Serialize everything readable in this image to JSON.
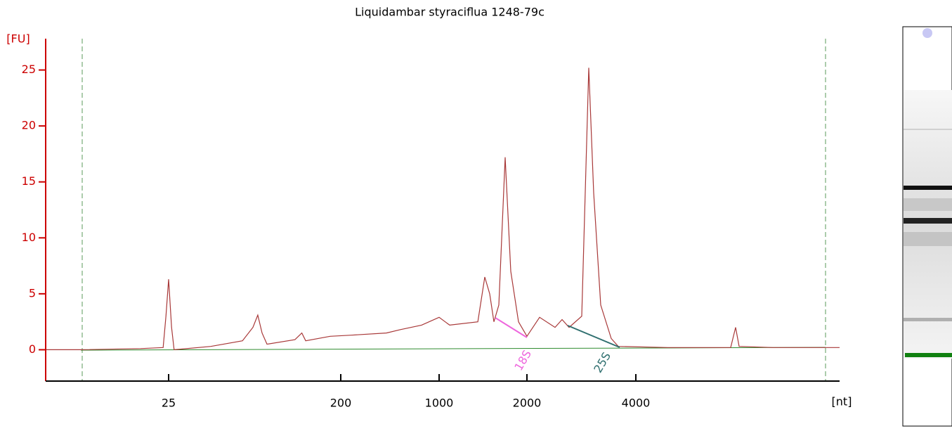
{
  "chart_data": {
    "type": "line",
    "title": "Liquidambar styraciflua 1248-79c",
    "ylabel": "[FU]",
    "xlabel": "[nt]",
    "x": [
      5.7,
      8.7,
      17.8,
      23.4,
      24.2,
      25,
      25.9,
      26.7,
      41.6,
      61,
      69.2,
      73.4,
      77.3,
      82,
      115,
      125,
      131,
      176,
      238,
      422,
      531,
      750,
      1000,
      1087,
      1357,
      1434,
      1491,
      1541,
      1602,
      1684,
      1761,
      1871,
      2000,
      2168,
      2392,
      2501,
      2615,
      2835,
      2964,
      3058,
      3199,
      3420,
      3577,
      4892,
      7316,
      7548,
      7720,
      9568,
      14632
    ],
    "values": [
      0,
      0,
      0.1,
      0.2,
      3,
      6.3,
      2,
      0,
      0.3,
      0.8,
      2,
      3.1,
      1.5,
      0.5,
      0.9,
      1.5,
      0.8,
      1.2,
      1.3,
      1.5,
      1.8,
      2.2,
      2.9,
      2.2,
      2.5,
      6.5,
      5,
      2.5,
      4,
      17.2,
      7,
      2.5,
      1.2,
      2.9,
      2,
      2.7,
      2,
      3,
      25.2,
      14,
      4,
      1,
      0.3,
      0.2,
      0.2,
      2,
      0.3,
      0.2,
      0.2
    ],
    "color": "#a83838",
    "xlim": [
      5.7,
      14632
    ],
    "xticks": [
      25,
      200,
      1000,
      2000,
      4000
    ],
    "ylim": [
      -2.8,
      27.8
    ],
    "yticks": [
      0,
      5,
      10,
      15,
      20,
      25
    ],
    "axis_color": "#cc0000",
    "annotations": [
      {
        "text": "18S",
        "color": "#ee66dd"
      },
      {
        "text": "25S",
        "color": "#2f6f6f"
      }
    ]
  }
}
